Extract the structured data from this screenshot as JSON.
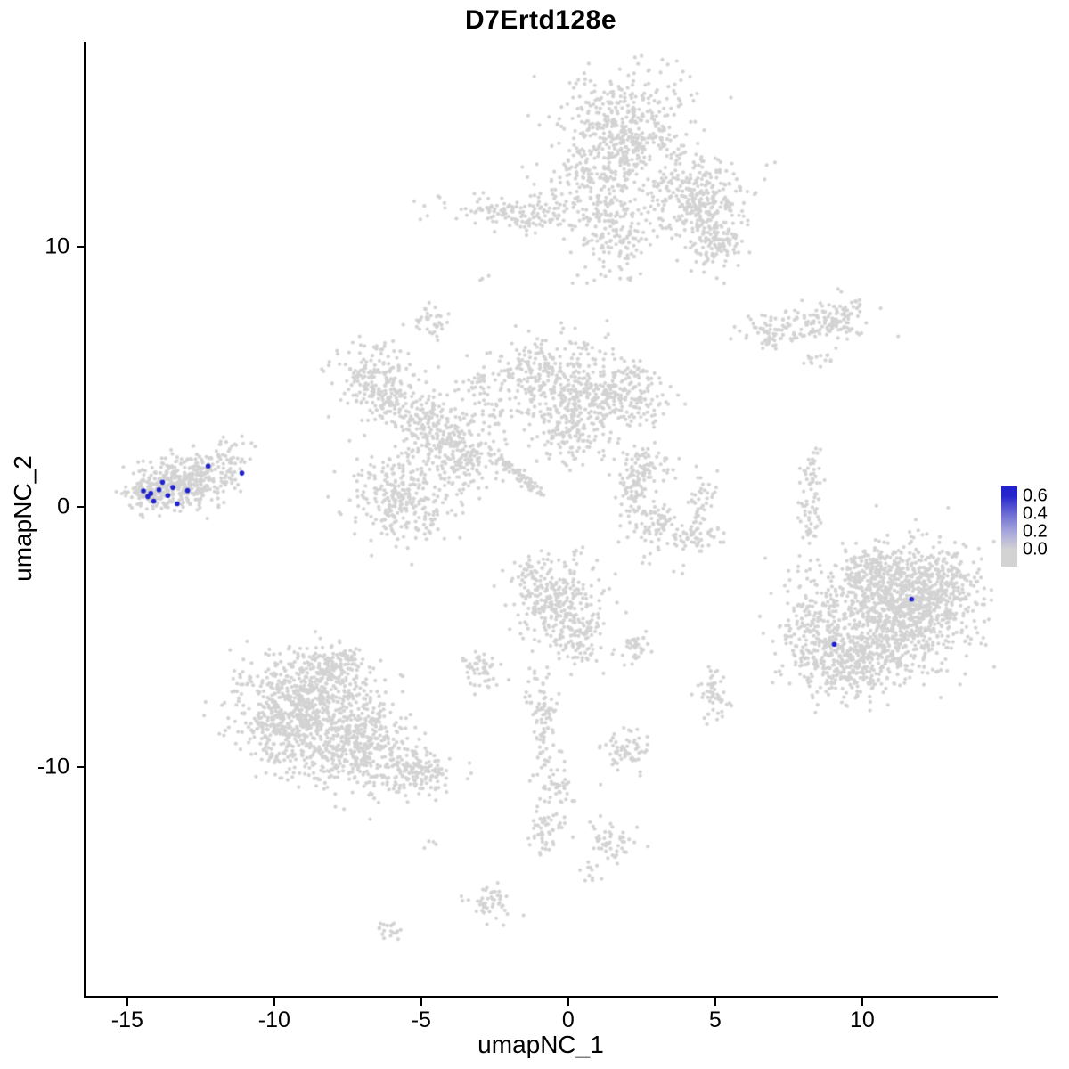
{
  "chart_data": {
    "type": "scatter",
    "title": "D7Ertd128e",
    "xlabel": "umapNC_1",
    "ylabel": "umapNC_2",
    "xlim": [
      -16.42,
      14.55
    ],
    "ylim": [
      -18.8,
      17.88
    ],
    "x_ticks": [
      -15,
      -10,
      -5,
      0,
      5,
      10
    ],
    "y_ticks": [
      -10,
      0,
      10
    ],
    "grid": false,
    "point_color": "#d3d3d3",
    "highlight_color": "#2121cd",
    "seed": 42,
    "legend": {
      "labels": [
        "0.6",
        "0.4",
        "0.2",
        "0.0"
      ],
      "values": [
        0.6,
        0.4,
        0.2,
        0.0
      ],
      "gradient_top": "#2121cd",
      "gradient_bottom": "#d3d3d3",
      "position": "right"
    },
    "background_clusters": [
      {
        "cx": 1.9,
        "cy": 14.3,
        "sx": 1.1,
        "sy": 1.4,
        "n": 550
      },
      {
        "cx": 4.5,
        "cy": 11.8,
        "sx": 0.8,
        "sy": 0.8,
        "n": 280
      },
      {
        "cx": 5.0,
        "cy": 10.3,
        "sx": 0.5,
        "sy": 0.6,
        "n": 120
      },
      {
        "cx": 1.6,
        "cy": 10.4,
        "sx": 0.6,
        "sy": 0.8,
        "n": 150
      },
      {
        "cx": -1.5,
        "cy": 11.3,
        "sx": 1.3,
        "sy": 0.35,
        "n": 160
      },
      {
        "cx": 0.6,
        "cy": 12.4,
        "sx": 0.8,
        "sy": 0.5,
        "n": 80
      },
      {
        "cx": 8.2,
        "cy": 7.0,
        "sx": 1.0,
        "sy": 0.35,
        "n": 90
      },
      {
        "cx": 9.2,
        "cy": 7.2,
        "sx": 0.5,
        "sy": 0.4,
        "n": 70
      },
      {
        "cx": 6.9,
        "cy": 6.6,
        "sx": 0.5,
        "sy": 0.25,
        "n": 40
      },
      {
        "cx": 8.4,
        "cy": 5.7,
        "sx": 0.3,
        "sy": 0.2,
        "n": 15
      },
      {
        "cx": -6.6,
        "cy": 5.0,
        "sx": 0.6,
        "sy": 0.6,
        "n": 160
      },
      {
        "cx": -5.9,
        "cy": 3.9,
        "sx": 0.4,
        "sy": 0.5,
        "n": 90
      },
      {
        "cx": -4.6,
        "cy": 3.0,
        "sx": 0.6,
        "sy": 0.6,
        "n": 160
      },
      {
        "cx": -3.4,
        "cy": 1.9,
        "sx": 0.55,
        "sy": 0.6,
        "n": 150
      },
      {
        "cx": -5.7,
        "cy": 0.3,
        "sx": 0.85,
        "sy": 0.85,
        "n": 280
      },
      {
        "cx": -0.7,
        "cy": 5.0,
        "sx": 1.0,
        "sy": 0.75,
        "n": 280
      },
      {
        "cx": 1.7,
        "cy": 4.3,
        "sx": 0.9,
        "sy": 0.65,
        "n": 240
      },
      {
        "cx": 0.0,
        "cy": 3.0,
        "sx": 0.7,
        "sy": 0.7,
        "n": 160
      },
      {
        "cx": -1.75,
        "cy": 1.25,
        "sx": 0.65,
        "sy": 0.1,
        "rot": -0.76,
        "n": 70
      },
      {
        "cx": -2.5,
        "cy": 3.5,
        "sx": 0.6,
        "sy": 0.6,
        "n": 50
      },
      {
        "cx": -3.3,
        "cy": 4.8,
        "sx": 0.4,
        "sy": 0.4,
        "n": 25
      },
      {
        "cx": -4.6,
        "cy": 7.2,
        "sx": 0.35,
        "sy": 0.3,
        "n": 35
      },
      {
        "cx": -13.5,
        "cy": 0.8,
        "sx": 0.75,
        "sy": 0.5,
        "n": 280
      },
      {
        "cx": -12.5,
        "cy": 1.2,
        "sx": 0.6,
        "sy": 0.45,
        "n": 130
      },
      {
        "cx": -11.6,
        "cy": 1.8,
        "sx": 0.35,
        "sy": 0.45,
        "n": 40
      },
      {
        "cx": -14.3,
        "cy": 0.5,
        "sx": 0.3,
        "sy": 0.3,
        "n": 60
      },
      {
        "cx": 8.3,
        "cy": 1.2,
        "sx": 0.18,
        "sy": 0.5,
        "n": 35
      },
      {
        "cx": 8.3,
        "cy": -0.3,
        "sx": 0.18,
        "sy": 0.55,
        "n": 40
      },
      {
        "cx": 2.7,
        "cy": 1.6,
        "sx": 0.5,
        "sy": 0.35,
        "n": 70
      },
      {
        "cx": 2.3,
        "cy": 0.6,
        "sx": 0.3,
        "sy": 0.5,
        "n": 60
      },
      {
        "cx": 2.9,
        "cy": -0.6,
        "sx": 0.5,
        "sy": 0.4,
        "n": 70
      },
      {
        "cx": 4.2,
        "cy": -1.1,
        "sx": 0.5,
        "sy": 0.3,
        "n": 60
      },
      {
        "cx": 4.6,
        "cy": 0.2,
        "sx": 0.25,
        "sy": 0.5,
        "n": 40
      },
      {
        "cx": 11.2,
        "cy": -3.9,
        "sx": 1.3,
        "sy": 1.1,
        "n": 1000
      },
      {
        "cx": 9.8,
        "cy": -5.9,
        "sx": 0.9,
        "sy": 0.7,
        "n": 300
      },
      {
        "cx": 8.6,
        "cy": -5.2,
        "sx": 0.7,
        "sy": 1.0,
        "n": 160
      },
      {
        "cx": 12.6,
        "cy": -3.0,
        "sx": 0.6,
        "sy": 0.8,
        "n": 180
      },
      {
        "cx": 10.6,
        "cy": -2.3,
        "sx": 0.8,
        "sy": 0.4,
        "n": 120
      },
      {
        "cx": 7.9,
        "cy": -4.0,
        "sx": 0.4,
        "sy": 0.9,
        "n": 40
      },
      {
        "cx": -0.4,
        "cy": -3.6,
        "sx": 0.75,
        "sy": 0.8,
        "n": 260
      },
      {
        "cx": 0.3,
        "cy": -5.0,
        "sx": 0.5,
        "sy": 0.5,
        "n": 80
      },
      {
        "cx": -1.3,
        "cy": -2.5,
        "sx": 0.3,
        "sy": 0.3,
        "n": 30
      },
      {
        "cx": -8.8,
        "cy": -7.6,
        "sx": 1.2,
        "sy": 0.9,
        "n": 650
      },
      {
        "cx": -7.0,
        "cy": -9.2,
        "sx": 0.9,
        "sy": 0.7,
        "n": 300
      },
      {
        "cx": -5.3,
        "cy": -10.2,
        "sx": 0.7,
        "sy": 0.5,
        "n": 160
      },
      {
        "cx": -10.0,
        "cy": -8.8,
        "sx": 0.5,
        "sy": 0.6,
        "n": 130
      },
      {
        "cx": -8.0,
        "cy": -6.0,
        "sx": 0.7,
        "sy": 0.4,
        "n": 120
      },
      {
        "cx": -8.6,
        "cy": -10.0,
        "sx": 0.7,
        "sy": 0.5,
        "n": 80
      },
      {
        "cx": -2.85,
        "cy": -6.3,
        "sx": 0.3,
        "sy": 0.45,
        "n": 50
      },
      {
        "cx": -0.9,
        "cy": -7.8,
        "sx": 0.22,
        "sy": 0.85,
        "n": 80
      },
      {
        "cx": 1.9,
        "cy": -9.3,
        "sx": 0.45,
        "sy": 0.45,
        "n": 60
      },
      {
        "cx": 4.9,
        "cy": -7.2,
        "sx": 0.3,
        "sy": 0.55,
        "n": 50
      },
      {
        "cx": 2.2,
        "cy": -5.4,
        "sx": 0.3,
        "sy": 0.35,
        "n": 35
      },
      {
        "cx": -0.5,
        "cy": -10.6,
        "sx": 0.35,
        "sy": 0.7,
        "n": 55
      },
      {
        "cx": -0.8,
        "cy": -12.4,
        "sx": 0.3,
        "sy": 0.5,
        "n": 45
      },
      {
        "cx": 1.5,
        "cy": -12.9,
        "sx": 0.5,
        "sy": 0.35,
        "n": 50
      },
      {
        "cx": -2.8,
        "cy": -15.2,
        "sx": 0.4,
        "sy": 0.35,
        "n": 45
      },
      {
        "cx": -6.2,
        "cy": -16.3,
        "sx": 0.3,
        "sy": 0.2,
        "n": 20
      },
      {
        "cx": 0.6,
        "cy": -14.0,
        "sx": 0.2,
        "sy": 0.25,
        "n": 10
      },
      {
        "cx": -4.6,
        "cy": -12.9,
        "sx": 0.15,
        "sy": 0.15,
        "n": 4
      },
      {
        "cx": 2.7,
        "cy": -2.2,
        "sx": 0.15,
        "sy": 0.15,
        "n": 3
      },
      {
        "cx": -2.8,
        "cy": 8.8,
        "sx": 0.12,
        "sy": 0.12,
        "n": 3
      },
      {
        "cx": 0.4,
        "cy": -1.8,
        "sx": 0.15,
        "sy": 0.15,
        "n": 4
      },
      {
        "cx": 3.8,
        "cy": -2.4,
        "sx": 0.12,
        "sy": 0.12,
        "n": 3
      },
      {
        "cx": 7.9,
        "cy": -2.4,
        "sx": 0.1,
        "sy": 0.1,
        "n": 2
      }
    ],
    "highlight_points": [
      {
        "x": -14.45,
        "y": 0.62
      },
      {
        "x": -14.3,
        "y": 0.4
      },
      {
        "x": -14.2,
        "y": 0.52
      },
      {
        "x": -14.1,
        "y": 0.22
      },
      {
        "x": -13.92,
        "y": 0.66
      },
      {
        "x": -13.8,
        "y": 0.95
      },
      {
        "x": -13.62,
        "y": 0.44
      },
      {
        "x": -13.45,
        "y": 0.75
      },
      {
        "x": -13.3,
        "y": 0.12
      },
      {
        "x": -12.95,
        "y": 0.63
      },
      {
        "x": -12.25,
        "y": 1.57
      },
      {
        "x": -11.1,
        "y": 1.3
      },
      {
        "x": 9.05,
        "y": -5.28
      },
      {
        "x": 11.68,
        "y": -3.55
      }
    ]
  }
}
